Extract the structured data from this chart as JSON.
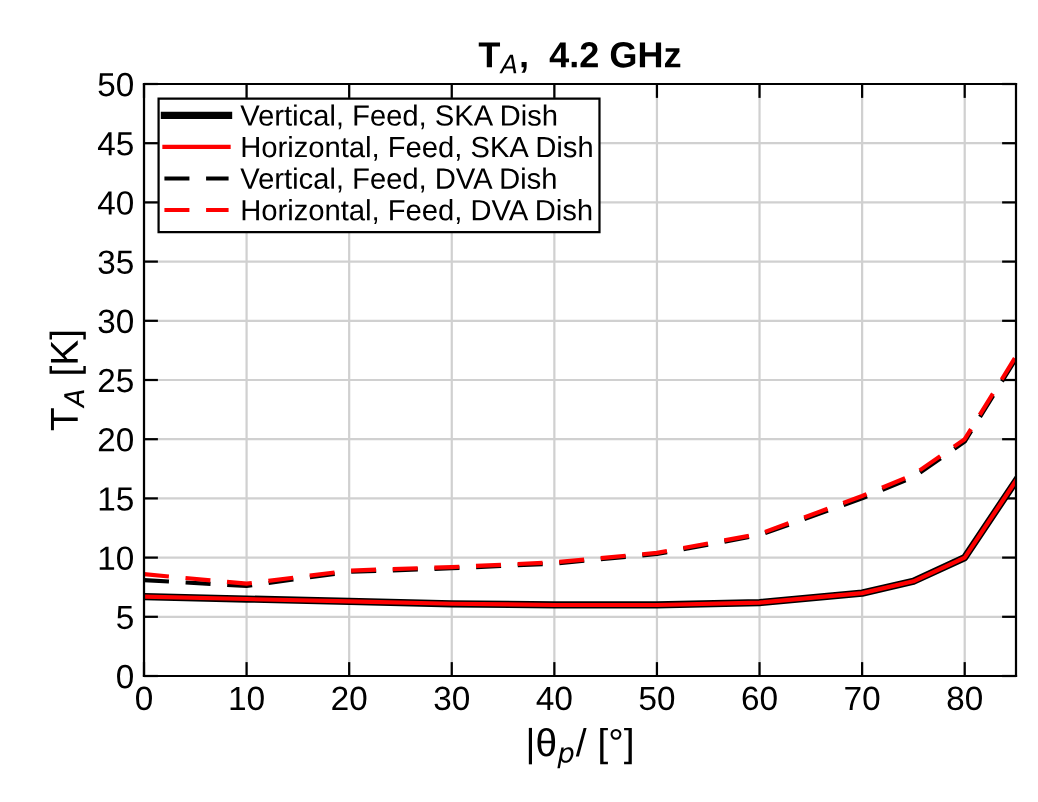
{
  "chart_data": {
    "type": "line",
    "title": "T$_{A}$,  4.2 GHz",
    "xlabel": "|θ$_{p}$/ [°]",
    "ylabel": "T$_{A}$ [K]",
    "x": [
      0,
      10,
      20,
      30,
      40,
      50,
      60,
      70,
      75,
      80,
      85
    ],
    "series": [
      {
        "name": "Vertical, Feed, SKA Dish",
        "color": "#000000",
        "line_style": "solid",
        "values": [
          6.7,
          6.5,
          6.3,
          6.1,
          6.0,
          6.0,
          6.2,
          7.0,
          8.0,
          10.0,
          16.5
        ]
      },
      {
        "name": "Horizontal, Feed, SKA Dish",
        "color": "#ff0000",
        "line_style": "solid",
        "values": [
          6.7,
          6.5,
          6.3,
          6.1,
          6.0,
          6.0,
          6.2,
          7.0,
          8.0,
          10.0,
          16.5
        ]
      },
      {
        "name": "Vertical, Feed, DVA Dish",
        "color": "#000000",
        "line_style": "dashed",
        "values": [
          8.1,
          7.6,
          8.8,
          9.1,
          9.5,
          10.3,
          11.9,
          15.0,
          16.8,
          19.8,
          26.8
        ]
      },
      {
        "name": "Horizontal, Feed, DVA Dish",
        "color": "#ff0000",
        "line_style": "dashed",
        "values": [
          8.6,
          7.8,
          8.9,
          9.2,
          9.6,
          10.4,
          12.0,
          15.2,
          17.0,
          20.0,
          27.0
        ]
      }
    ],
    "xlim": [
      0,
      85
    ],
    "xticks": [
      0,
      10,
      20,
      30,
      40,
      50,
      60,
      70,
      80
    ],
    "ylim": [
      0,
      50
    ],
    "yticks": [
      0,
      5,
      10,
      15,
      20,
      25,
      30,
      35,
      40,
      45,
      50
    ],
    "grid": true,
    "legend": "top left"
  }
}
